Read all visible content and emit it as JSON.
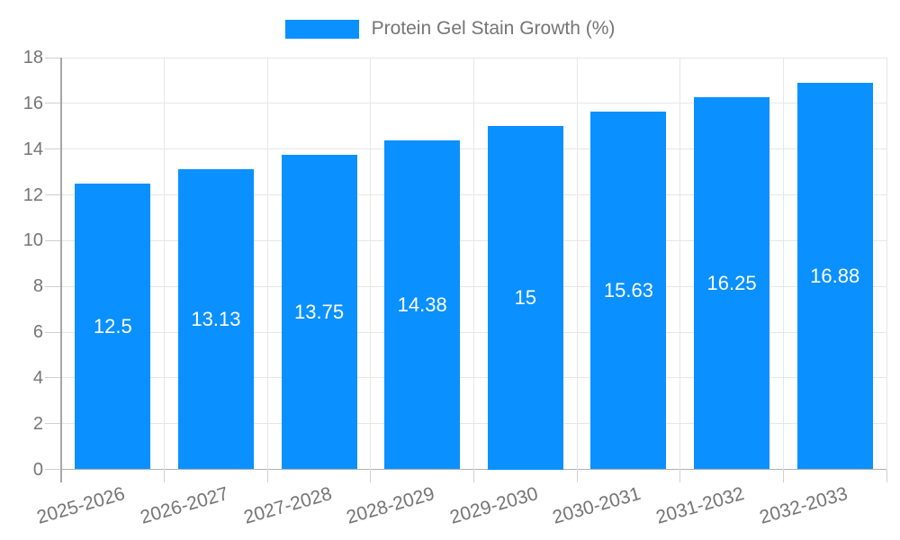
{
  "chart_data": {
    "type": "bar",
    "title": "Protein Gel Stain Growth (%)",
    "legend": [
      {
        "label": "Protein Gel Stain Growth (%)",
        "color": "#0A90FF"
      }
    ],
    "legend_position": "top-center",
    "categories": [
      "2025-2026",
      "2026-2027",
      "2027-2028",
      "2028-2029",
      "2029-2030",
      "2030-2031",
      "2031-2032",
      "2032-2033"
    ],
    "values": [
      12.5,
      13.13,
      13.75,
      14.38,
      15,
      15.63,
      16.25,
      16.88
    ],
    "bar_value_labels": [
      "12.5",
      "13.13",
      "13.75",
      "14.38",
      "15",
      "15.63",
      "16.25",
      "16.88"
    ],
    "xlabel": "",
    "ylabel": "",
    "ylim": [
      0,
      18
    ],
    "ytick_step": 2,
    "ytick_labels": [
      "0",
      "2",
      "4",
      "6",
      "8",
      "10",
      "12",
      "14",
      "16",
      "18"
    ],
    "grid": true,
    "colors": {
      "bar": "#0A90FF",
      "bar_label": "#FFFFFF",
      "axis_text": "#757575",
      "gridline": "#E6E6E6",
      "axis_line": "#A6A6A6",
      "baseline": "#B0B0B0",
      "tick": "#CFCFCF",
      "background": "#FFFFFF"
    }
  }
}
